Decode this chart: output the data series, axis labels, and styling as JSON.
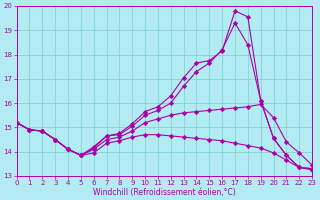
{
  "xlabel": "Windchill (Refroidissement éolien,°C)",
  "background_color": "#b2ebf2",
  "grid_color": "#7ececa",
  "line_color": "#aa00aa",
  "xlim": [
    0,
    23
  ],
  "ylim": [
    13,
    20
  ],
  "yticks": [
    13,
    14,
    15,
    16,
    17,
    18,
    19,
    20
  ],
  "xticks": [
    0,
    1,
    2,
    3,
    4,
    5,
    6,
    7,
    8,
    9,
    10,
    11,
    12,
    13,
    14,
    15,
    16,
    17,
    18,
    19,
    20,
    21,
    22,
    23
  ],
  "line1_x": [
    0,
    1,
    2,
    3,
    4,
    5,
    6,
    7,
    8,
    9,
    10,
    11,
    12,
    13,
    14,
    15,
    16,
    17,
    18,
    19,
    20,
    21,
    22,
    23
  ],
  "line1_y": [
    15.2,
    14.9,
    14.85,
    14.5,
    14.1,
    13.85,
    14.15,
    14.65,
    14.7,
    15.05,
    15.5,
    15.7,
    16.0,
    16.7,
    17.3,
    17.65,
    18.2,
    19.3,
    18.4,
    16.1,
    14.55,
    13.85,
    13.35,
    13.3
  ],
  "line2_x": [
    0,
    1,
    2,
    3,
    4,
    5,
    6,
    7,
    8,
    9,
    10,
    11,
    12,
    13,
    14,
    15,
    16,
    17,
    18,
    19,
    20,
    21,
    22,
    23
  ],
  "line2_y": [
    15.2,
    14.9,
    14.85,
    14.5,
    14.1,
    13.85,
    14.2,
    14.65,
    14.75,
    15.15,
    15.65,
    15.85,
    16.3,
    17.05,
    17.65,
    17.75,
    18.15,
    19.8,
    19.55,
    16.1,
    14.55,
    13.85,
    13.35,
    13.3
  ],
  "line3_x": [
    0,
    1,
    2,
    3,
    4,
    5,
    6,
    7,
    8,
    9,
    10,
    11,
    12,
    13,
    14,
    15,
    16,
    17,
    18,
    19,
    20,
    21,
    22,
    23
  ],
  "line3_y": [
    15.2,
    14.9,
    14.85,
    14.5,
    14.1,
    13.85,
    14.1,
    14.5,
    14.6,
    14.85,
    15.2,
    15.35,
    15.5,
    15.6,
    15.65,
    15.7,
    15.75,
    15.8,
    15.85,
    15.95,
    15.4,
    14.4,
    13.95,
    13.45
  ],
  "line4_x": [
    0,
    1,
    2,
    3,
    4,
    5,
    6,
    7,
    8,
    9,
    10,
    11,
    12,
    13,
    14,
    15,
    16,
    17,
    18,
    19,
    20,
    21,
    22,
    23
  ],
  "line4_y": [
    15.2,
    14.9,
    14.85,
    14.5,
    14.1,
    13.85,
    13.95,
    14.35,
    14.45,
    14.6,
    14.7,
    14.7,
    14.65,
    14.6,
    14.55,
    14.5,
    14.45,
    14.35,
    14.25,
    14.15,
    13.95,
    13.65,
    13.35,
    13.25
  ]
}
